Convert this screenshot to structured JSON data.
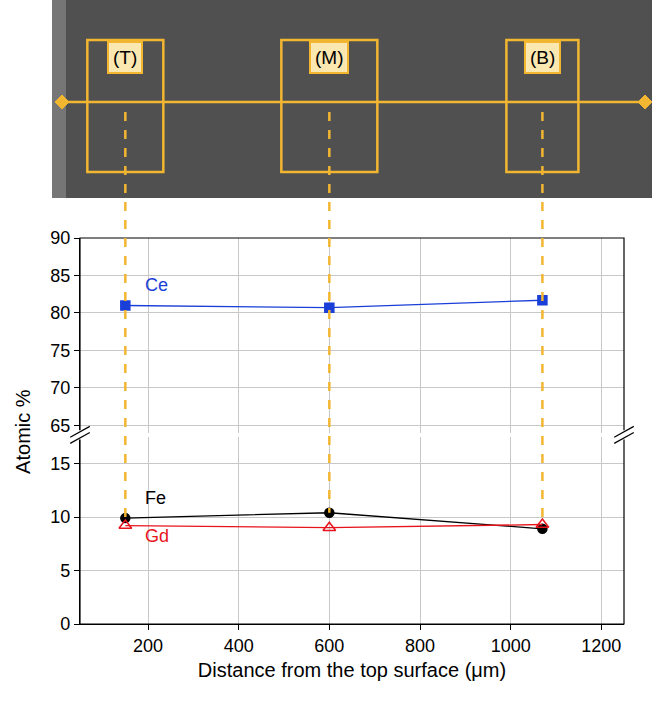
{
  "chart_data": {
    "type": "line",
    "x_label": "Distance from the top surface (μm)",
    "y_label": "Atomic %",
    "x": [
      150,
      600,
      1070
    ],
    "series": [
      {
        "name": "Ce",
        "color": "#1a3fd8",
        "marker": "square",
        "values": [
          81.0,
          80.7,
          81.7
        ],
        "axis": "y2"
      },
      {
        "name": "Fe",
        "color": "#000000",
        "marker": "circle",
        "values": [
          9.9,
          10.4,
          8.9
        ]
      },
      {
        "name": "Gd",
        "color": "#e8141c",
        "marker": "triangle-up-open",
        "values": [
          9.2,
          9.0,
          9.3
        ]
      }
    ],
    "annotations": [
      {
        "text": "(T)"
      },
      {
        "text": "(M)"
      },
      {
        "text": "(B)"
      }
    ],
    "xlim": [
      50,
      1250
    ],
    "xticks": [
      200,
      400,
      600,
      800,
      1000,
      1200
    ],
    "ylim": [
      0,
      17.5
    ],
    "yticks": [
      0,
      5,
      10,
      15
    ],
    "y2lim": [
      64,
      90
    ],
    "y2ticks": [
      65,
      70,
      75,
      80,
      85,
      90
    ],
    "grid": true
  }
}
